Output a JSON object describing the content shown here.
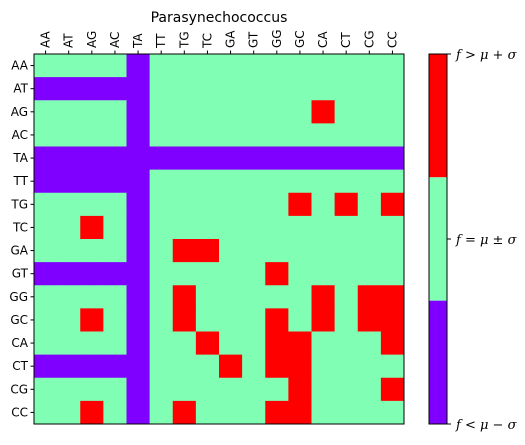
{
  "chart_data": {
    "type": "heatmap",
    "title": "Parasynechococcus",
    "columns": [
      "AA",
      "AT",
      "AG",
      "AC",
      "TA",
      "TT",
      "TG",
      "TC",
      "GA",
      "GT",
      "GG",
      "GC",
      "CA",
      "CT",
      "CG",
      "CC"
    ],
    "rows": [
      "AA",
      "AT",
      "AG",
      "AC",
      "TA",
      "TT",
      "TG",
      "TC",
      "GA",
      "GT",
      "GG",
      "GC",
      "CA",
      "CT",
      "CG",
      "CC"
    ],
    "matrix": [
      [
        0,
        0,
        0,
        0,
        -1,
        0,
        0,
        0,
        0,
        0,
        0,
        0,
        0,
        0,
        0,
        0
      ],
      [
        -1,
        -1,
        -1,
        -1,
        -1,
        0,
        0,
        0,
        0,
        0,
        0,
        0,
        0,
        0,
        0,
        0
      ],
      [
        0,
        0,
        0,
        0,
        -1,
        0,
        0,
        0,
        0,
        0,
        0,
        0,
        1,
        0,
        0,
        0
      ],
      [
        0,
        0,
        0,
        0,
        -1,
        0,
        0,
        0,
        0,
        0,
        0,
        0,
        0,
        0,
        0,
        0
      ],
      [
        -1,
        -1,
        -1,
        -1,
        -1,
        -1,
        -1,
        -1,
        -1,
        -1,
        -1,
        -1,
        -1,
        -1,
        -1,
        -1
      ],
      [
        -1,
        -1,
        -1,
        -1,
        -1,
        0,
        0,
        0,
        0,
        0,
        0,
        0,
        0,
        0,
        0,
        0
      ],
      [
        0,
        0,
        0,
        0,
        -1,
        0,
        0,
        0,
        0,
        0,
        0,
        1,
        0,
        1,
        0,
        1
      ],
      [
        0,
        0,
        1,
        0,
        -1,
        0,
        0,
        0,
        0,
        0,
        0,
        0,
        0,
        0,
        0,
        0
      ],
      [
        0,
        0,
        0,
        0,
        -1,
        0,
        1,
        1,
        0,
        0,
        0,
        0,
        0,
        0,
        0,
        0
      ],
      [
        -1,
        -1,
        -1,
        -1,
        -1,
        0,
        0,
        0,
        0,
        0,
        1,
        0,
        0,
        0,
        0,
        0
      ],
      [
        0,
        0,
        0,
        0,
        -1,
        0,
        1,
        0,
        0,
        0,
        0,
        0,
        1,
        0,
        1,
        1
      ],
      [
        0,
        0,
        1,
        0,
        -1,
        0,
        1,
        0,
        0,
        0,
        1,
        0,
        1,
        0,
        1,
        1
      ],
      [
        0,
        0,
        0,
        0,
        -1,
        0,
        0,
        1,
        0,
        0,
        1,
        1,
        0,
        0,
        0,
        1
      ],
      [
        -1,
        -1,
        -1,
        -1,
        -1,
        0,
        0,
        0,
        1,
        0,
        1,
        1,
        0,
        0,
        0,
        0
      ],
      [
        0,
        0,
        0,
        0,
        -1,
        0,
        0,
        0,
        0,
        0,
        0,
        1,
        0,
        0,
        0,
        1
      ],
      [
        0,
        0,
        1,
        0,
        -1,
        0,
        1,
        0,
        0,
        0,
        1,
        1,
        0,
        0,
        0,
        0
      ]
    ],
    "colors": {
      "low": "#8000ff",
      "mid": "#80ffb4",
      "high": "#ff0000"
    },
    "colorbar_labels": [
      "f > μ + σ",
      "f = μ ± σ",
      "f < μ − σ"
    ]
  }
}
